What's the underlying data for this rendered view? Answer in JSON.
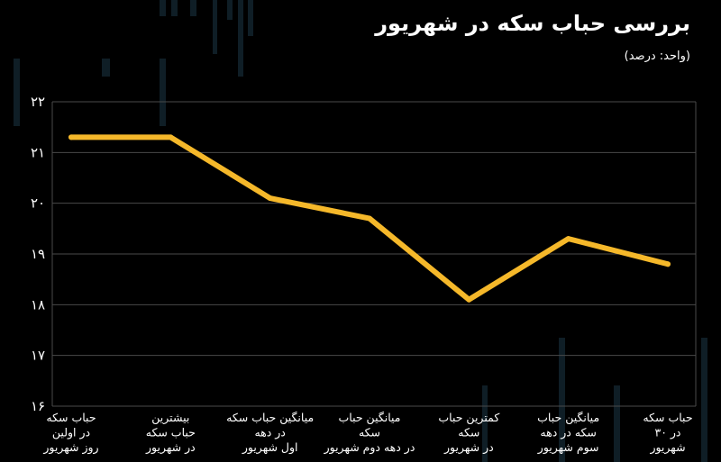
{
  "title": "بررسی حباب سکه در شهریور",
  "unit": "(واحد: درصد)",
  "colors": {
    "background": "#000000",
    "line": "#f5b82a",
    "grid": "#4a4a4a",
    "text": "#ffffff"
  },
  "chart_data": {
    "type": "line",
    "title": "بررسی حباب سکه در شهریور",
    "unit": "(واحد: درصد)",
    "categories": [
      [
        "حباب سکه",
        "در اولین",
        "روز شهریور"
      ],
      [
        "بیشترین",
        "حباب سکه",
        "در شهریور"
      ],
      [
        "میانگین حباب سکه",
        "در دهه",
        "اول شهریور"
      ],
      [
        "میانگین حباب",
        "سکه",
        "در دهه دوم شهریور"
      ],
      [
        "کمترین حباب",
        "سکه",
        "در شهریور"
      ],
      [
        "میانگین حباب",
        "سکه در دهه",
        "سوم شهریور"
      ],
      [
        "حباب سکه",
        "در ۳۰",
        "شهریور"
      ]
    ],
    "series": [
      {
        "values": [
          21.3,
          21.3,
          20.1,
          19.7,
          18.1,
          19.3,
          18.8
        ]
      }
    ],
    "ylim": [
      16,
      22
    ],
    "yticks": [
      16,
      17,
      18,
      19,
      20,
      21,
      22
    ],
    "ytick_labels": [
      "۱۶",
      "۱۷",
      "۱۸",
      "۱۹",
      "۲۰",
      "۲۱",
      "۲۲"
    ],
    "grid": true,
    "legend": "none"
  }
}
